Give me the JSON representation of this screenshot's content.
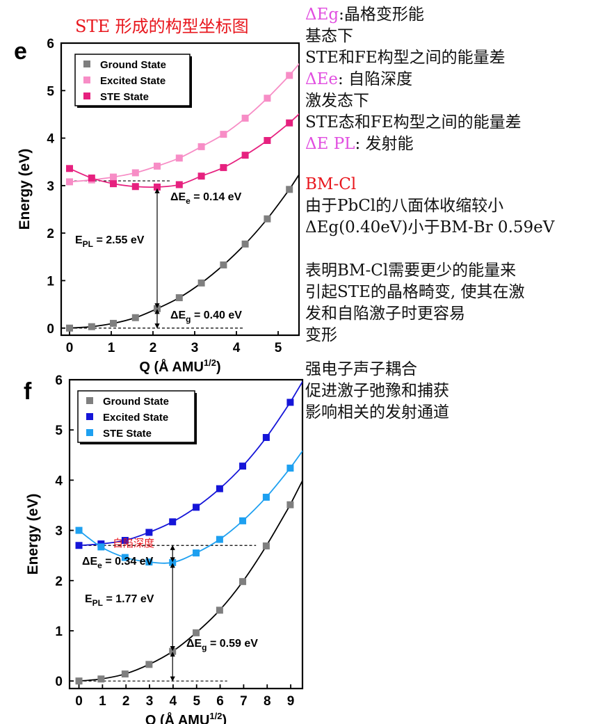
{
  "page_title": "STE 形成的构型坐标图",
  "colors": {
    "ground": "#7f7f7f",
    "e_excited": "#f78dc6",
    "e_ste": "#e6217f",
    "f_excited": "#1515d8",
    "f_ste": "#1ea0f0",
    "curve": "#000000"
  },
  "notes": {
    "top": [
      {
        "label": "ΔEg",
        "text": ":晶格变形能"
      },
      {
        "label": "",
        "text": "基态下"
      },
      {
        "label": "",
        "text": "STE和FE构型之间的能量差"
      },
      {
        "label": "ΔEe",
        "text": ": 自陷深度"
      },
      {
        "label": "",
        "text": "激发态下"
      },
      {
        "label": "",
        "text": "STE态和FE构型之间的能量差"
      },
      {
        "label": "ΔE PL",
        "text": ": 发射能"
      }
    ],
    "mid_heading": "BM-Cl",
    "mid": [
      "由于PbCl的八面体收缩较小",
      "ΔEg(0.40eV)小于BM-Br 0.59eV",
      "",
      "表明BM-Cl需要更少的能量来",
      "引起STE的晶格畸变, 使其在激",
      "发和自陷激子时更容易",
      "变形"
    ],
    "bottom": [
      "强电子声子耦合",
      "促进激子弛豫和捕获",
      "影响相关的发射通道"
    ]
  },
  "chart_data": [
    {
      "panel_label": "e",
      "type": "scatter",
      "xlabel": "Q (Å AMU^1/2)",
      "ylabel": "Energy (eV)",
      "xlim": [
        -0.2,
        5.5
      ],
      "ylim": [
        -0.15,
        6
      ],
      "xticks": [
        0,
        1,
        2,
        3,
        4,
        5
      ],
      "yticks": [
        0,
        1,
        2,
        3,
        4,
        5,
        6
      ],
      "legend_position": "top-left",
      "series": [
        {
          "name": "Ground State",
          "color": "#7f7f7f",
          "x": [
            0,
            0.53,
            1.05,
            1.58,
            2.1,
            2.63,
            3.16,
            3.69,
            4.21,
            4.74,
            5.27
          ],
          "y": [
            0,
            0.03,
            0.1,
            0.22,
            0.41,
            0.64,
            0.95,
            1.33,
            1.77,
            2.3,
            2.92
          ]
        },
        {
          "name": "Excited State",
          "color": "#f78dc6",
          "x": [
            0,
            0.53,
            1.05,
            1.58,
            2.1,
            2.63,
            3.16,
            3.69,
            4.21,
            4.74,
            5.27
          ],
          "y": [
            3.08,
            3.12,
            3.18,
            3.27,
            3.41,
            3.58,
            3.82,
            4.08,
            4.42,
            4.84,
            5.32
          ]
        },
        {
          "name": "STE State",
          "color": "#e6217f",
          "x": [
            0,
            0.53,
            1.05,
            1.58,
            2.1,
            2.63,
            3.16,
            3.69,
            4.21,
            4.74,
            5.27
          ],
          "y": [
            3.36,
            3.16,
            3.04,
            2.98,
            2.97,
            3.02,
            3.2,
            3.38,
            3.64,
            3.95,
            4.32
          ]
        }
      ],
      "annotations": [
        {
          "main": "ΔE",
          "sub": "e",
          "tail": " = 0.14 eV"
        },
        {
          "main": "E",
          "sub": "PL",
          "tail": " = 2.55 eV"
        },
        {
          "main": "ΔE",
          "sub": "g",
          "tail": " = 0.40 eV"
        }
      ],
      "ref_levels": {
        "excited_min": 3.1,
        "ground_min": 0.0,
        "ste_min": 2.95,
        "ste_min_x": 2.1,
        "ground_at_ste": 0.41
      }
    },
    {
      "panel_label": "f",
      "type": "scatter",
      "xlabel": "Q (Å AMU^1/2)",
      "ylabel": "Energy (eV)",
      "xlim": [
        -0.4,
        9.5
      ],
      "ylim": [
        -0.15,
        6
      ],
      "xticks": [
        0,
        1,
        2,
        3,
        4,
        5,
        6,
        7,
        8,
        9
      ],
      "yticks": [
        0,
        1,
        2,
        3,
        4,
        5,
        6
      ],
      "legend_position": "top-left",
      "series": [
        {
          "name": "Ground State",
          "color": "#7f7f7f",
          "x": [
            0,
            0.94,
            1.96,
            2.98,
            3.98,
            4.98,
            5.98,
            6.96,
            7.96,
            8.98
          ],
          "y": [
            0,
            0.04,
            0.14,
            0.33,
            0.59,
            0.96,
            1.41,
            1.98,
            2.69,
            3.51
          ]
        },
        {
          "name": "Excited State",
          "color": "#1515d8",
          "x": [
            0,
            0.94,
            1.96,
            2.98,
            3.98,
            4.98,
            5.98,
            6.96,
            7.96,
            8.98
          ],
          "y": [
            2.7,
            2.73,
            2.8,
            2.96,
            3.17,
            3.46,
            3.83,
            4.28,
            4.85,
            5.55
          ]
        },
        {
          "name": "STE State",
          "color": "#1ea0f0",
          "x": [
            0,
            0.94,
            1.96,
            2.98,
            3.98,
            4.98,
            5.98,
            6.96,
            7.96,
            8.98
          ],
          "y": [
            3.0,
            2.67,
            2.46,
            2.37,
            2.36,
            2.55,
            2.82,
            3.19,
            3.66,
            4.24
          ]
        }
      ],
      "annotations": [
        {
          "main": "ΔE",
          "sub": "e",
          "tail": " = 0.34 eV"
        },
        {
          "main": "E",
          "sub": "PL",
          "tail": " = 1.77 eV"
        },
        {
          "main": "ΔE",
          "sub": "g",
          "tail": " = 0.59 eV"
        }
      ],
      "handwritten_note": "自陷深度",
      "ref_levels": {
        "excited_min": 2.7,
        "ground_min": 0.0,
        "ste_min": 2.36,
        "ste_min_x": 3.98,
        "ground_at_ste": 0.59
      }
    }
  ]
}
